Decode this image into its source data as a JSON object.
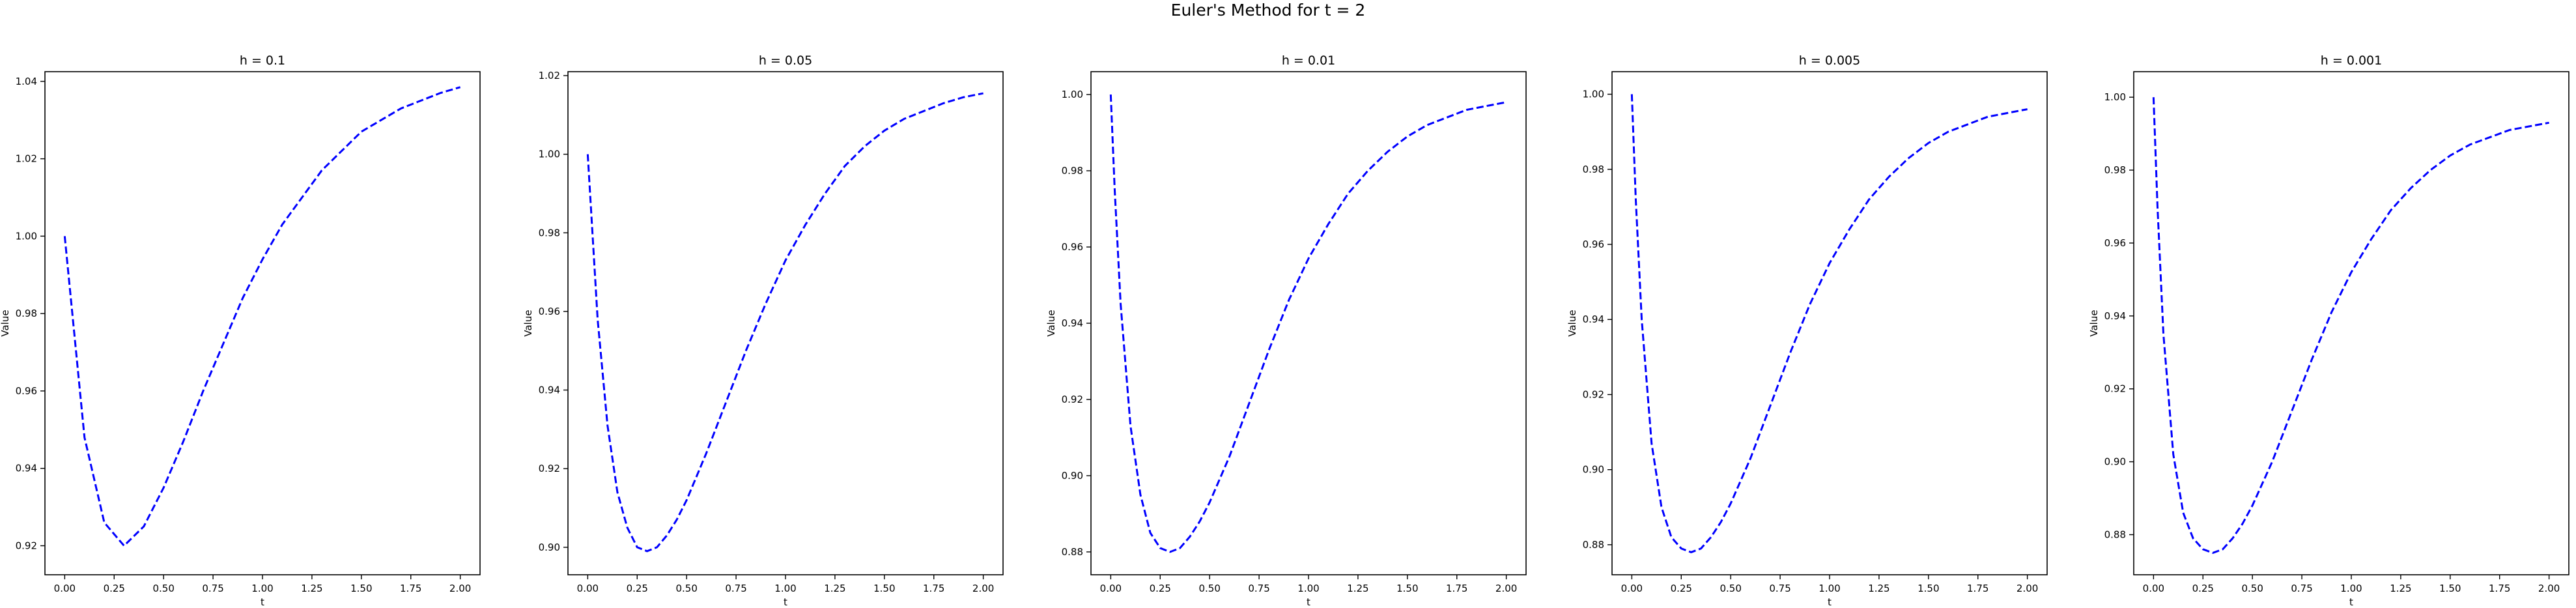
{
  "figure": {
    "suptitle": "Euler's Method for t = 2"
  },
  "style": {
    "line_color": "#0000ff",
    "line_style": "dashed",
    "axes_color": "#000000",
    "background": "#ffffff"
  },
  "chart_data": [
    {
      "type": "line",
      "title": "h = 0.1",
      "xlabel": "t",
      "ylabel": "Value",
      "xlim": [
        -0.1,
        2.1
      ],
      "ylim": [
        0.9125,
        1.0425
      ],
      "xticks": [
        0.0,
        0.25,
        0.5,
        0.75,
        1.0,
        1.25,
        1.5,
        1.75,
        2.0
      ],
      "xtick_labels": [
        "0.00",
        "0.25",
        "0.50",
        "0.75",
        "1.00",
        "1.25",
        "1.50",
        "1.75",
        "2.00"
      ],
      "yticks": [
        0.92,
        0.94,
        0.96,
        0.98,
        1.0,
        1.02,
        1.04
      ],
      "ytick_labels": [
        "0.92",
        "0.94",
        "0.96",
        "0.98",
        "1.00",
        "1.02",
        "1.04"
      ],
      "grid": false,
      "series": [
        {
          "x": [
            0.0,
            0.1,
            0.2,
            0.3,
            0.4,
            0.5,
            0.6,
            0.7,
            0.8,
            0.9,
            1.0,
            1.1,
            1.2,
            1.3,
            1.4,
            1.5,
            1.6,
            1.7,
            1.8,
            1.9,
            2.0
          ],
          "y": [
            1.0,
            0.948,
            0.926,
            0.92,
            0.925,
            0.935,
            0.947,
            0.96,
            0.972,
            0.984,
            0.994,
            1.003,
            1.01,
            1.017,
            1.022,
            1.027,
            1.03,
            1.033,
            1.035,
            1.037,
            1.0385
          ]
        }
      ]
    },
    {
      "type": "line",
      "title": "h = 0.05",
      "xlabel": "t",
      "ylabel": "Value",
      "xlim": [
        -0.1,
        2.1
      ],
      "ylim": [
        0.893,
        1.021
      ],
      "xticks": [
        0.0,
        0.25,
        0.5,
        0.75,
        1.0,
        1.25,
        1.5,
        1.75,
        2.0
      ],
      "xtick_labels": [
        "0.00",
        "0.25",
        "0.50",
        "0.75",
        "1.00",
        "1.25",
        "1.50",
        "1.75",
        "2.00"
      ],
      "yticks": [
        0.9,
        0.92,
        0.94,
        0.96,
        0.98,
        1.0,
        1.02
      ],
      "ytick_labels": [
        "0.90",
        "0.92",
        "0.94",
        "0.96",
        "0.98",
        "1.00",
        "1.02"
      ],
      "grid": false,
      "series": [
        {
          "x": [
            0.0,
            0.05,
            0.1,
            0.15,
            0.2,
            0.25,
            0.3,
            0.35,
            0.4,
            0.45,
            0.5,
            0.6,
            0.7,
            0.8,
            0.9,
            1.0,
            1.1,
            1.2,
            1.3,
            1.4,
            1.5,
            1.6,
            1.7,
            1.8,
            1.9,
            2.0
          ],
          "y": [
            1.0,
            0.958,
            0.931,
            0.914,
            0.905,
            0.9,
            0.899,
            0.9,
            0.903,
            0.907,
            0.912,
            0.924,
            0.937,
            0.95,
            0.962,
            0.973,
            0.982,
            0.99,
            0.997,
            1.002,
            1.006,
            1.009,
            1.011,
            1.013,
            1.0145,
            1.0155
          ]
        }
      ]
    },
    {
      "type": "line",
      "title": "h = 0.01",
      "xlabel": "t",
      "ylabel": "Value",
      "xlim": [
        -0.1,
        2.1
      ],
      "ylim": [
        0.874,
        1.006
      ],
      "xticks": [
        0.0,
        0.25,
        0.5,
        0.75,
        1.0,
        1.25,
        1.5,
        1.75,
        2.0
      ],
      "xtick_labels": [
        "0.00",
        "0.25",
        "0.50",
        "0.75",
        "1.00",
        "1.25",
        "1.50",
        "1.75",
        "2.00"
      ],
      "yticks": [
        0.88,
        0.9,
        0.92,
        0.94,
        0.96,
        0.98,
        1.0
      ],
      "ytick_labels": [
        "0.88",
        "0.90",
        "0.92",
        "0.94",
        "0.96",
        "0.98",
        "1.00"
      ],
      "grid": false,
      "series": [
        {
          "x": [
            0.0,
            0.02,
            0.05,
            0.1,
            0.15,
            0.2,
            0.25,
            0.3,
            0.35,
            0.4,
            0.45,
            0.5,
            0.6,
            0.7,
            0.8,
            0.9,
            1.0,
            1.1,
            1.2,
            1.3,
            1.4,
            1.5,
            1.6,
            1.7,
            1.8,
            1.9,
            2.0
          ],
          "y": [
            1.0,
            0.975,
            0.945,
            0.913,
            0.895,
            0.885,
            0.881,
            0.88,
            0.881,
            0.884,
            0.888,
            0.893,
            0.905,
            0.919,
            0.933,
            0.946,
            0.957,
            0.966,
            0.974,
            0.98,
            0.985,
            0.989,
            0.992,
            0.994,
            0.996,
            0.997,
            0.998
          ]
        }
      ]
    },
    {
      "type": "line",
      "title": "h = 0.005",
      "xlabel": "t",
      "ylabel": "Value",
      "xlim": [
        -0.1,
        2.1
      ],
      "ylim": [
        0.872,
        1.006
      ],
      "xticks": [
        0.0,
        0.25,
        0.5,
        0.75,
        1.0,
        1.25,
        1.5,
        1.75,
        2.0
      ],
      "xtick_labels": [
        "0.00",
        "0.25",
        "0.50",
        "0.75",
        "1.00",
        "1.25",
        "1.50",
        "1.75",
        "2.00"
      ],
      "yticks": [
        0.88,
        0.9,
        0.92,
        0.94,
        0.96,
        0.98,
        1.0
      ],
      "ytick_labels": [
        "0.88",
        "0.90",
        "0.92",
        "0.94",
        "0.96",
        "0.98",
        "1.00"
      ],
      "grid": false,
      "series": [
        {
          "x": [
            0.0,
            0.02,
            0.05,
            0.1,
            0.15,
            0.2,
            0.25,
            0.3,
            0.35,
            0.4,
            0.45,
            0.5,
            0.6,
            0.7,
            0.8,
            0.9,
            1.0,
            1.1,
            1.2,
            1.3,
            1.4,
            1.5,
            1.6,
            1.7,
            1.8,
            1.9,
            2.0
          ],
          "y": [
            1.0,
            0.972,
            0.94,
            0.907,
            0.89,
            0.882,
            0.879,
            0.878,
            0.879,
            0.882,
            0.886,
            0.891,
            0.903,
            0.917,
            0.931,
            0.944,
            0.955,
            0.964,
            0.972,
            0.978,
            0.983,
            0.987,
            0.99,
            0.992,
            0.994,
            0.995,
            0.996
          ]
        }
      ]
    },
    {
      "type": "line",
      "title": "h = 0.001",
      "xlabel": "t",
      "ylabel": "Value",
      "xlim": [
        -0.1,
        2.1
      ],
      "ylim": [
        0.869,
        1.007
      ],
      "xticks": [
        0.0,
        0.25,
        0.5,
        0.75,
        1.0,
        1.25,
        1.5,
        1.75,
        2.0
      ],
      "xtick_labels": [
        "0.00",
        "0.25",
        "0.50",
        "0.75",
        "1.00",
        "1.25",
        "1.50",
        "1.75",
        "2.00"
      ],
      "yticks": [
        0.88,
        0.9,
        0.92,
        0.94,
        0.96,
        0.98,
        1.0
      ],
      "ytick_labels": [
        "0.88",
        "0.90",
        "0.92",
        "0.94",
        "0.96",
        "0.98",
        "1.00"
      ],
      "grid": false,
      "series": [
        {
          "x": [
            0.0,
            0.02,
            0.05,
            0.1,
            0.15,
            0.2,
            0.25,
            0.3,
            0.35,
            0.4,
            0.45,
            0.5,
            0.6,
            0.7,
            0.8,
            0.9,
            1.0,
            1.1,
            1.2,
            1.3,
            1.4,
            1.5,
            1.6,
            1.7,
            1.8,
            1.9,
            2.0
          ],
          "y": [
            1.0,
            0.97,
            0.935,
            0.902,
            0.886,
            0.879,
            0.876,
            0.875,
            0.876,
            0.879,
            0.883,
            0.888,
            0.9,
            0.914,
            0.928,
            0.941,
            0.952,
            0.961,
            0.969,
            0.975,
            0.98,
            0.984,
            0.987,
            0.989,
            0.991,
            0.992,
            0.993
          ]
        }
      ]
    }
  ]
}
